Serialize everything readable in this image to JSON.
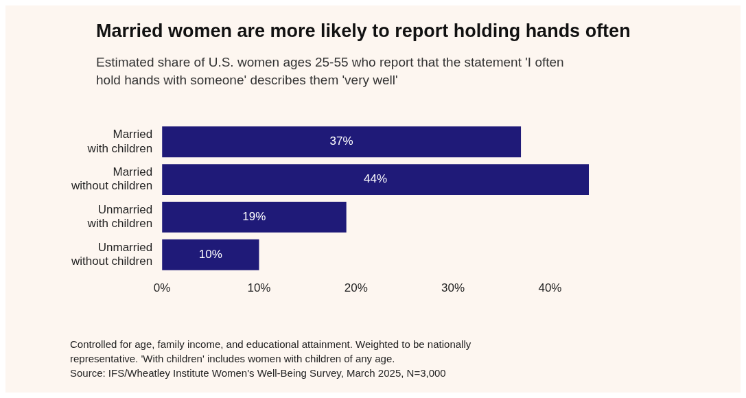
{
  "chart_data": {
    "type": "bar",
    "orientation": "horizontal",
    "title": "Married women are more likely to report holding hands often",
    "subtitle": "Estimated share of U.S. women ages 25-55 who report that the statement 'I often hold hands with someone' describes them 'very well'",
    "categories": [
      "Married with children",
      "Married without children",
      "Unmarried with children",
      "Unmarried without children"
    ],
    "values": [
      37,
      44,
      19,
      10
    ],
    "color": "#1f1a78",
    "value_labels": [
      "37%",
      "44%",
      "19%",
      "10%"
    ],
    "xlim": [
      0,
      44
    ],
    "xticks": [
      {
        "value": 0,
        "label": "0%"
      },
      {
        "value": 10,
        "label": "10%"
      },
      {
        "value": 20,
        "label": "20%"
      },
      {
        "value": 30,
        "label": "30%"
      },
      {
        "value": 40,
        "label": "40%"
      }
    ],
    "grid": false,
    "legend": false,
    "annotations": [
      "Controlled for age, family income, and educational attainment. Weighted to be nationally representative. 'With children' includes women with children of any age.",
      "Source: IFS/Wheatley Institute Women's Well-Being Survey, March 2025, N=3,000"
    ]
  }
}
